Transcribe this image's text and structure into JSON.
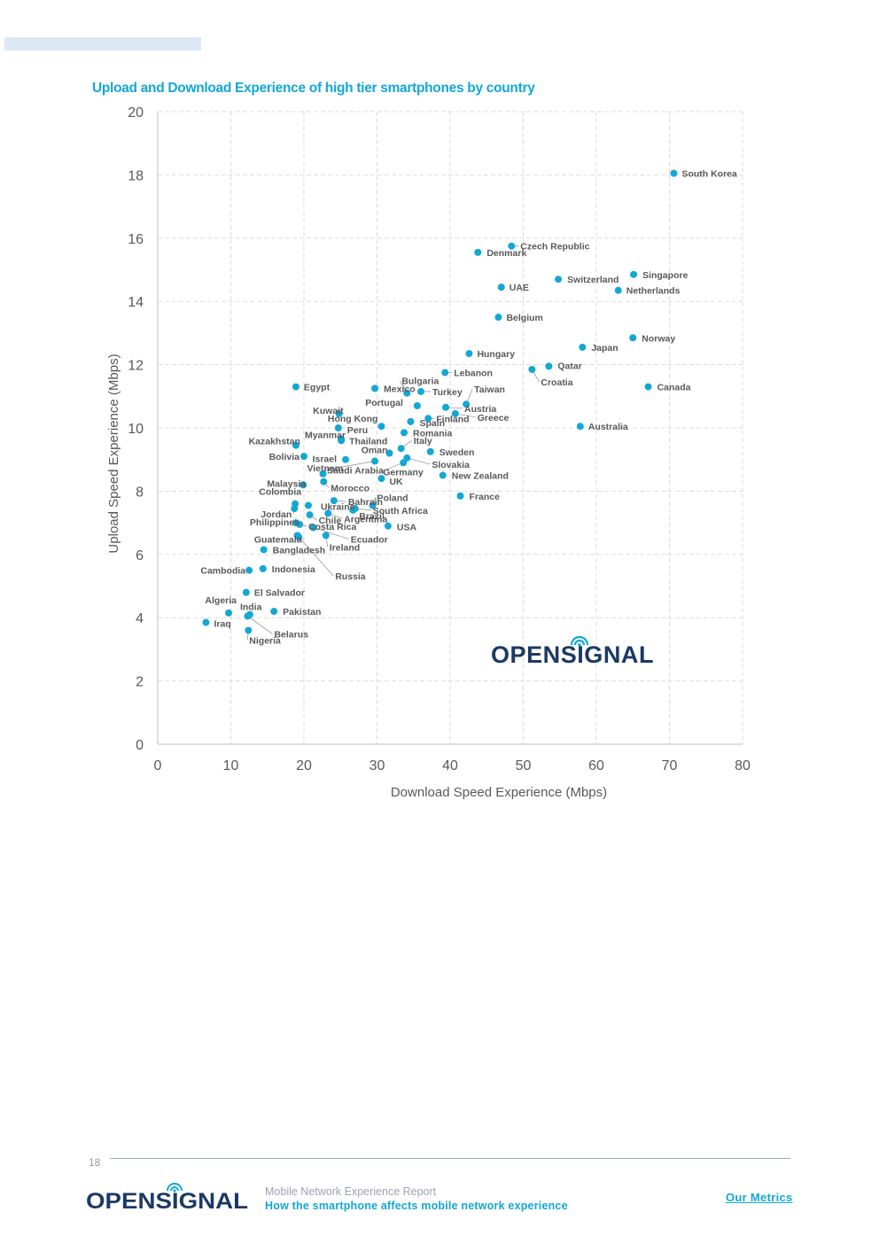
{
  "chart_data": {
    "type": "scatter",
    "title": "Upload and Download Experience of high tier smartphones by country",
    "xlabel": "Download Speed Experience (Mbps)",
    "ylabel": "Upload Speed Experience (Mbps)",
    "xlim": [
      0,
      80
    ],
    "ylim": [
      0,
      20
    ],
    "xticks": [
      0,
      10,
      20,
      30,
      40,
      50,
      60,
      70,
      80
    ],
    "yticks": [
      0,
      2,
      4,
      6,
      8,
      10,
      12,
      14,
      16,
      18,
      20
    ],
    "grid": true,
    "point_color": "#13a7d6",
    "points": [
      {
        "name": "South Korea",
        "x": 70.6,
        "y": 18.05
      },
      {
        "name": "Czech Republic",
        "x": 48.4,
        "y": 15.75
      },
      {
        "name": "Denmark",
        "x": 43.8,
        "y": 15.55
      },
      {
        "name": "Switzerland",
        "x": 54.8,
        "y": 14.7
      },
      {
        "name": "Singapore",
        "x": 65.1,
        "y": 14.85
      },
      {
        "name": "Netherlands",
        "x": 63.0,
        "y": 14.35
      },
      {
        "name": "UAE",
        "x": 47.0,
        "y": 14.45
      },
      {
        "name": "Belgium",
        "x": 46.6,
        "y": 13.5
      },
      {
        "name": "Norway",
        "x": 65.0,
        "y": 12.85
      },
      {
        "name": "Japan",
        "x": 58.1,
        "y": 12.55
      },
      {
        "name": "Hungary",
        "x": 42.6,
        "y": 12.35
      },
      {
        "name": "Qatar",
        "x": 53.5,
        "y": 11.95
      },
      {
        "name": "Croatia",
        "x": 51.2,
        "y": 11.85
      },
      {
        "name": "Lebanon",
        "x": 39.3,
        "y": 11.75
      },
      {
        "name": "Canada",
        "x": 67.1,
        "y": 11.3
      },
      {
        "name": "Egypt",
        "x": 18.9,
        "y": 11.3
      },
      {
        "name": "Mexico",
        "x": 29.7,
        "y": 11.25
      },
      {
        "name": "Bulgaria",
        "x": 34.1,
        "y": 11.1
      },
      {
        "name": "Turkey",
        "x": 36.0,
        "y": 11.15
      },
      {
        "name": "Taiwan",
        "x": 42.2,
        "y": 10.75
      },
      {
        "name": "Portugal",
        "x": 35.5,
        "y": 10.7
      },
      {
        "name": "Austria",
        "x": 39.4,
        "y": 10.65
      },
      {
        "name": "Finland",
        "x": 37.0,
        "y": 10.3
      },
      {
        "name": "Greece",
        "x": 40.7,
        "y": 10.45
      },
      {
        "name": "Kuwait",
        "x": 24.8,
        "y": 10.45
      },
      {
        "name": "Hong Kong",
        "x": 30.6,
        "y": 10.05
      },
      {
        "name": "Spain",
        "x": 34.6,
        "y": 10.2
      },
      {
        "name": "Australia",
        "x": 57.8,
        "y": 10.05
      },
      {
        "name": "Peru",
        "x": 24.7,
        "y": 10.0
      },
      {
        "name": "Romania",
        "x": 33.7,
        "y": 9.85
      },
      {
        "name": "Myanmar",
        "x": 25.1,
        "y": 9.65
      },
      {
        "name": "Thailand",
        "x": 25.1,
        "y": 9.6
      },
      {
        "name": "Kazakhstan",
        "x": 18.9,
        "y": 9.45
      },
      {
        "name": "Italy",
        "x": 33.3,
        "y": 9.35
      },
      {
        "name": "Oman",
        "x": 31.7,
        "y": 9.2
      },
      {
        "name": "Sweden",
        "x": 37.3,
        "y": 9.25
      },
      {
        "name": "Bolivia",
        "x": 20.0,
        "y": 9.1
      },
      {
        "name": "Israel",
        "x": 25.7,
        "y": 9.0
      },
      {
        "name": "Slovakia",
        "x": 34.1,
        "y": 9.05
      },
      {
        "name": "Saudi Arabia",
        "x": 29.7,
        "y": 8.95
      },
      {
        "name": "Germany",
        "x": 33.6,
        "y": 8.9
      },
      {
        "name": "New Zealand",
        "x": 39.0,
        "y": 8.5
      },
      {
        "name": "Vietnam",
        "x": 22.6,
        "y": 8.55
      },
      {
        "name": "UK",
        "x": 30.6,
        "y": 8.4
      },
      {
        "name": "Malaysia",
        "x": 19.9,
        "y": 8.2
      },
      {
        "name": "Morocco",
        "x": 22.7,
        "y": 8.3
      },
      {
        "name": "France",
        "x": 41.4,
        "y": 7.85
      },
      {
        "name": "Colombia",
        "x": 18.8,
        "y": 7.6
      },
      {
        "name": "Bahrain",
        "x": 24.1,
        "y": 7.7
      },
      {
        "name": "Poland",
        "x": 29.4,
        "y": 7.55
      },
      {
        "name": "Ukraine",
        "x": 20.6,
        "y": 7.55
      },
      {
        "name": "Jordan",
        "x": 18.7,
        "y": 7.45
      },
      {
        "name": "Brazil",
        "x": 26.7,
        "y": 7.4
      },
      {
        "name": "South Africa",
        "x": 27.0,
        "y": 7.45
      },
      {
        "name": "Chile",
        "x": 20.8,
        "y": 7.25
      },
      {
        "name": "Philippines",
        "x": 18.9,
        "y": 7.0
      },
      {
        "name": "Costa Rica",
        "x": 19.4,
        "y": 6.95
      },
      {
        "name": "Argentina",
        "x": 23.3,
        "y": 7.3
      },
      {
        "name": "USA",
        "x": 31.5,
        "y": 6.9
      },
      {
        "name": "Ecuador",
        "x": 21.3,
        "y": 6.85
      },
      {
        "name": "Guatemala",
        "x": 19.1,
        "y": 6.6
      },
      {
        "name": "Ireland",
        "x": 23.0,
        "y": 6.6
      },
      {
        "name": "Bangladesh",
        "x": 14.5,
        "y": 6.15
      },
      {
        "name": "Russia",
        "x": 19.3,
        "y": 6.55
      },
      {
        "name": "Cambodia",
        "x": 12.5,
        "y": 5.5
      },
      {
        "name": "Indonesia",
        "x": 14.4,
        "y": 5.55
      },
      {
        "name": "El Salvador",
        "x": 12.1,
        "y": 4.8
      },
      {
        "name": "Algeria",
        "x": 9.7,
        "y": 4.15
      },
      {
        "name": "India",
        "x": 12.6,
        "y": 4.1
      },
      {
        "name": "Pakistan",
        "x": 15.9,
        "y": 4.2
      },
      {
        "name": "Iraq",
        "x": 6.6,
        "y": 3.85
      },
      {
        "name": "Belarus",
        "x": 12.3,
        "y": 4.05
      },
      {
        "name": "Nigeria",
        "x": 12.4,
        "y": 3.6
      }
    ]
  },
  "watermark_logo": "OPENSIGNAL",
  "footer": {
    "page_number": "18",
    "logo_text": "OPENSIGNAL",
    "report_title": "Mobile Network Experience Report",
    "report_subtitle": "How the smartphone affects mobile network experience",
    "link_label": "Our Metrics"
  },
  "colors": {
    "accent": "#13a7d6",
    "navy": "#1b3a63",
    "grid": "#dcdcdc",
    "text": "#595959"
  }
}
